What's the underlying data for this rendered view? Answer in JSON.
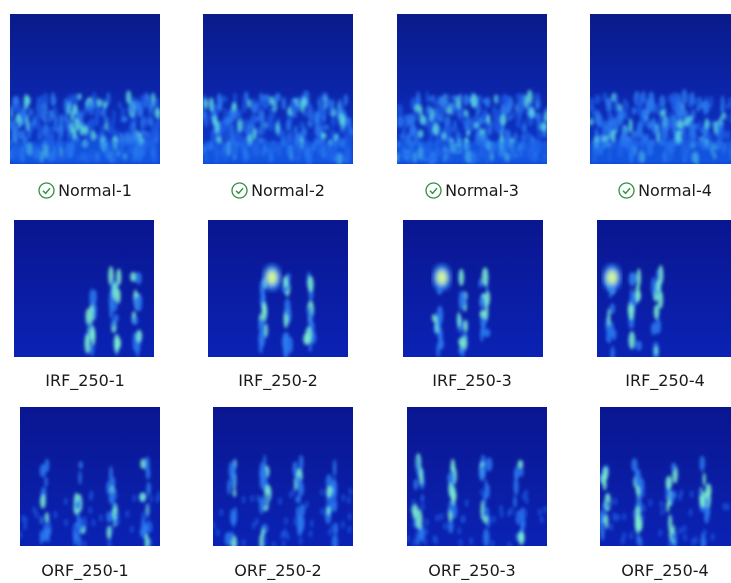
{
  "files": [
    [
      "Normal-1",
      "Normal-2",
      "Normal-3",
      "Normal-4"
    ],
    [
      "IRF_250-1",
      "IRF_250-2",
      "IRF_250-3",
      "IRF_250-4"
    ],
    [
      "ORF_250-1",
      "ORF_250-2",
      "ORF_250-3",
      "ORF_250-4"
    ]
  ]
}
